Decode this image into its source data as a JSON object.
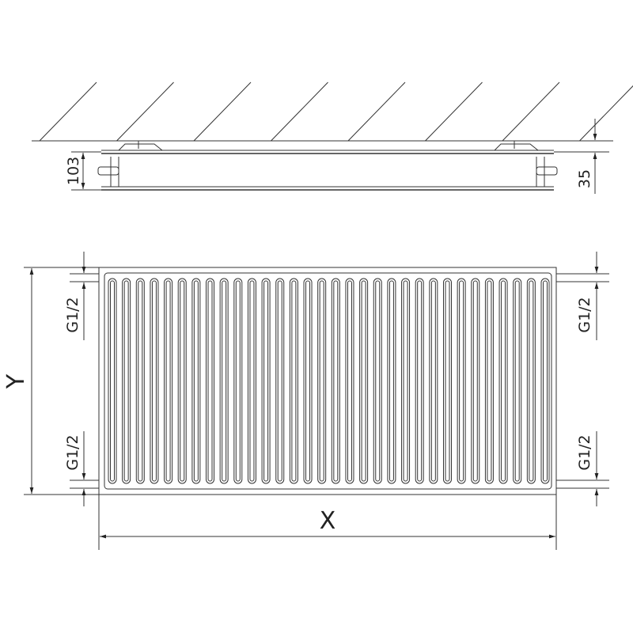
{
  "top_view": {
    "depth_label": "103",
    "wall_gap_label": "35"
  },
  "front_view": {
    "height_label": "Y",
    "width_label": "X",
    "connection_labels": [
      "G1/2",
      "G1/2",
      "G1/2",
      "G1/2"
    ],
    "flute_count": 32
  },
  "colors": {
    "line": "#333333",
    "background": "#ffffff"
  }
}
